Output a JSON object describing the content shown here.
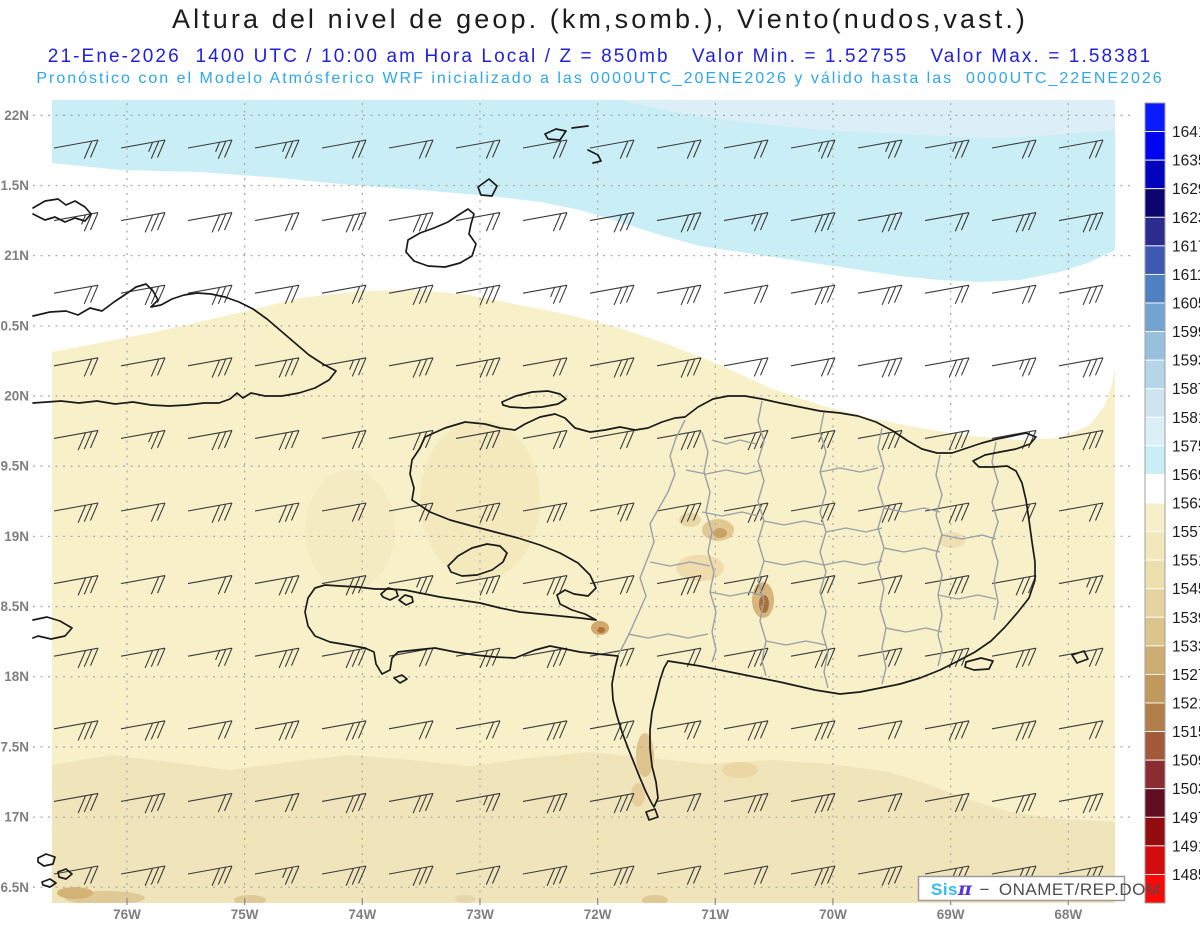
{
  "header": {
    "title": "Altura del nivel de geop. (km,somb.), Viento(nudos,vast.)",
    "subtitle_datetime": "21-Ene-2026  1400 UTC / 10:00 am Hora Local / Z = 850mb   Valor Min. = 1.52755   Valor Max. = 1.58381",
    "subtitle_model": "Pronóstico con el Modelo Atmósferico WRF inicializado a las 0000UTC_20ENE2026 y válido hasta las  0000UTC_22ENE2026"
  },
  "chart_data": {
    "type": "heatmap",
    "title": "Altura del nivel de geop. (km,somb.), Viento(nudos,vast.)",
    "variable": "Altura del nivel de geopotencial (km, sombreado)",
    "wind_annotation": "Viento (nudos, vastagos)",
    "level": "Z = 850mb",
    "valid_datetime": "21-Ene-2026 1400 UTC / 10:00 am Hora Local",
    "valor_min": 1.52755,
    "valor_max": 1.58381,
    "model": "WRF",
    "model_init": "0000UTC_20ENE2026",
    "model_valid_until": "0000UTC_22ENE2026",
    "x_tick_labels": [
      "76W",
      "75W",
      "74W",
      "73W",
      "72W",
      "71W",
      "70W",
      "69W",
      "68W"
    ],
    "y_tick_labels": [
      "22N",
      "1.5N",
      "21N",
      "0.5N",
      "20N",
      "9.5N",
      "19N",
      "8.5N",
      "18N",
      "7.5N",
      "17N",
      "6.5N"
    ],
    "colorbar": {
      "tick_labels": [
        "1641",
        "1635",
        "1629",
        "1623",
        "1617",
        "1611",
        "1605",
        "1599",
        "1593",
        "1587",
        "1581",
        "1575",
        "1569",
        "1563",
        "1557",
        "1551",
        "1545",
        "1539",
        "1533",
        "1527",
        "1521",
        "1515",
        "1509",
        "1503",
        "1497",
        "1491",
        "1485"
      ],
      "colors": [
        "#0a1cff",
        "#0005ef",
        "#0104bc",
        "#0d0470",
        "#2c2b8e",
        "#3f59b2",
        "#4f80c1",
        "#73a4d1",
        "#97c0dd",
        "#b5d5e8",
        "#cfe4ef",
        "#dceef6",
        "#c9eef6",
        "#ffffff",
        "#f6efc9",
        "#f2e8bc",
        "#ecdfae",
        "#e5d49f",
        "#dbc58d",
        "#cead73",
        "#c1995d",
        "#b27e49",
        "#a25a3b",
        "#8a2d32",
        "#5f0e23",
        "#920c10",
        "#d20c0c",
        "#fd0707"
      ]
    },
    "wind_barbs": {
      "pattern": "easterly trade winds, barbs pointing ENE",
      "typical_speed_kt": "10-20",
      "grid_cols": 16,
      "grid_rows": 11
    },
    "map_colors": {
      "cyan_band": "#c9eef6",
      "pale_blue_band": "#dceef6",
      "white_band": "#ffffff",
      "base_yellow": "#f7f0c8",
      "cream_band": "#f0e4ba",
      "coastline": "#1a1a1a",
      "admin_boundary": "#9aa0a8"
    }
  },
  "watermark": {
    "brand": "Sis",
    "symbol": "π",
    "separator": "−",
    "org": "ONAMET/REP.DOM."
  }
}
